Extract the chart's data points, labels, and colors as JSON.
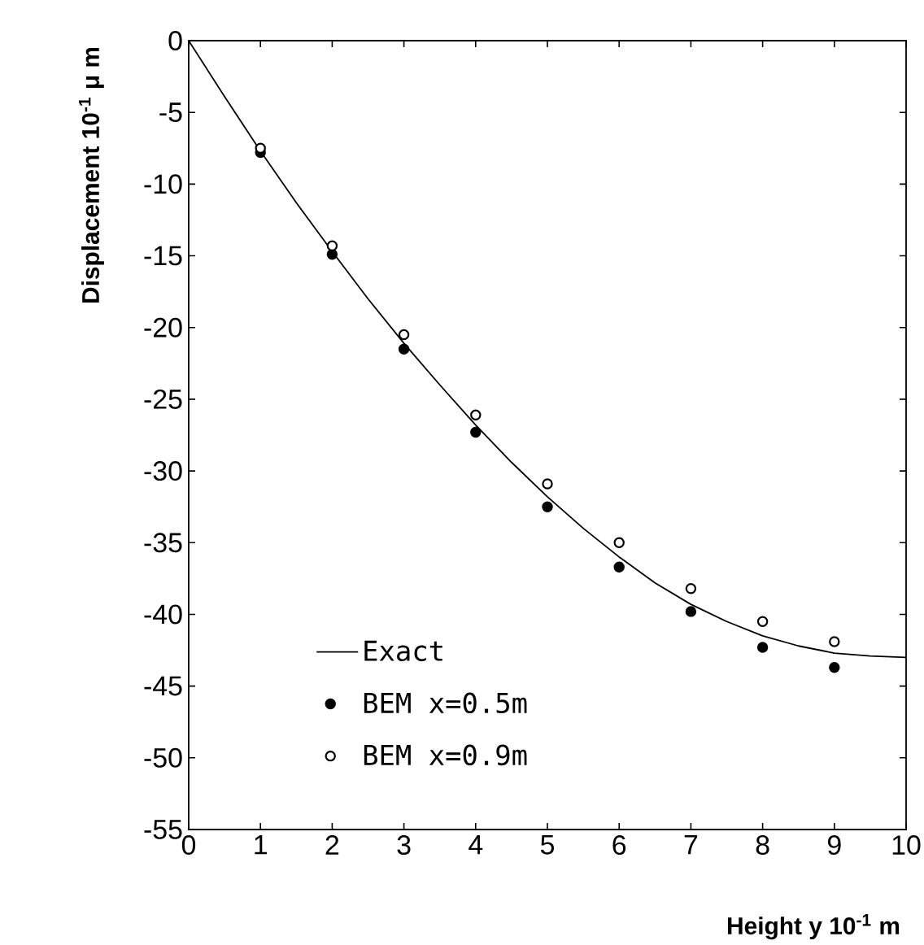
{
  "chart_data": {
    "type": "scatter",
    "xlabel": "Height      y      10$^{-1}$ m",
    "ylabel": "Displacement    10$^{-1}$ μ m",
    "xlim": [
      0,
      10
    ],
    "ylim": [
      -55,
      0
    ],
    "xticks": [
      0,
      1,
      2,
      3,
      4,
      5,
      6,
      7,
      8,
      9,
      10
    ],
    "yticks": [
      -55,
      -50,
      -45,
      -40,
      -35,
      -30,
      -25,
      -20,
      -15,
      -10,
      -5,
      0
    ],
    "legend": "bottom",
    "grid": false,
    "series": [
      {
        "name": "Exact",
        "type": "line",
        "color": "#000000",
        "marker": "none",
        "line_style": "solid",
        "x": [
          0,
          0.5,
          1,
          1.5,
          2,
          2.5,
          3,
          3.5,
          4,
          4.5,
          5,
          5.5,
          6,
          6.5,
          7,
          7.5,
          8,
          8.5,
          9,
          9.5,
          10
        ],
        "values": [
          0,
          -3.9,
          -7.7,
          -11.3,
          -14.7,
          -18.0,
          -21.1,
          -24.0,
          -26.8,
          -29.4,
          -31.8,
          -34.0,
          -36.0,
          -37.8,
          -39.3,
          -40.5,
          -41.5,
          -42.2,
          -42.7,
          -42.9,
          -43.0
        ]
      },
      {
        "name": "BEM    x=0.5m",
        "color": "#000000",
        "marker": "circle",
        "x": [
          1,
          2,
          3,
          4,
          5,
          6,
          7,
          8,
          9
        ],
        "values": [
          -7.8,
          -14.9,
          -21.5,
          -27.3,
          -32.5,
          -36.7,
          -39.8,
          -42.3,
          -43.7
        ]
      },
      {
        "name": "BEM    x=0.9m",
        "color": "#000000",
        "marker": "circle",
        "x": [
          1,
          2,
          3,
          4,
          5,
          6,
          7,
          8,
          9
        ],
        "values": [
          -7.5,
          -14.3,
          -20.5,
          -26.1,
          -30.9,
          -35.0,
          -38.2,
          -40.5,
          -41.9
        ]
      }
    ]
  }
}
